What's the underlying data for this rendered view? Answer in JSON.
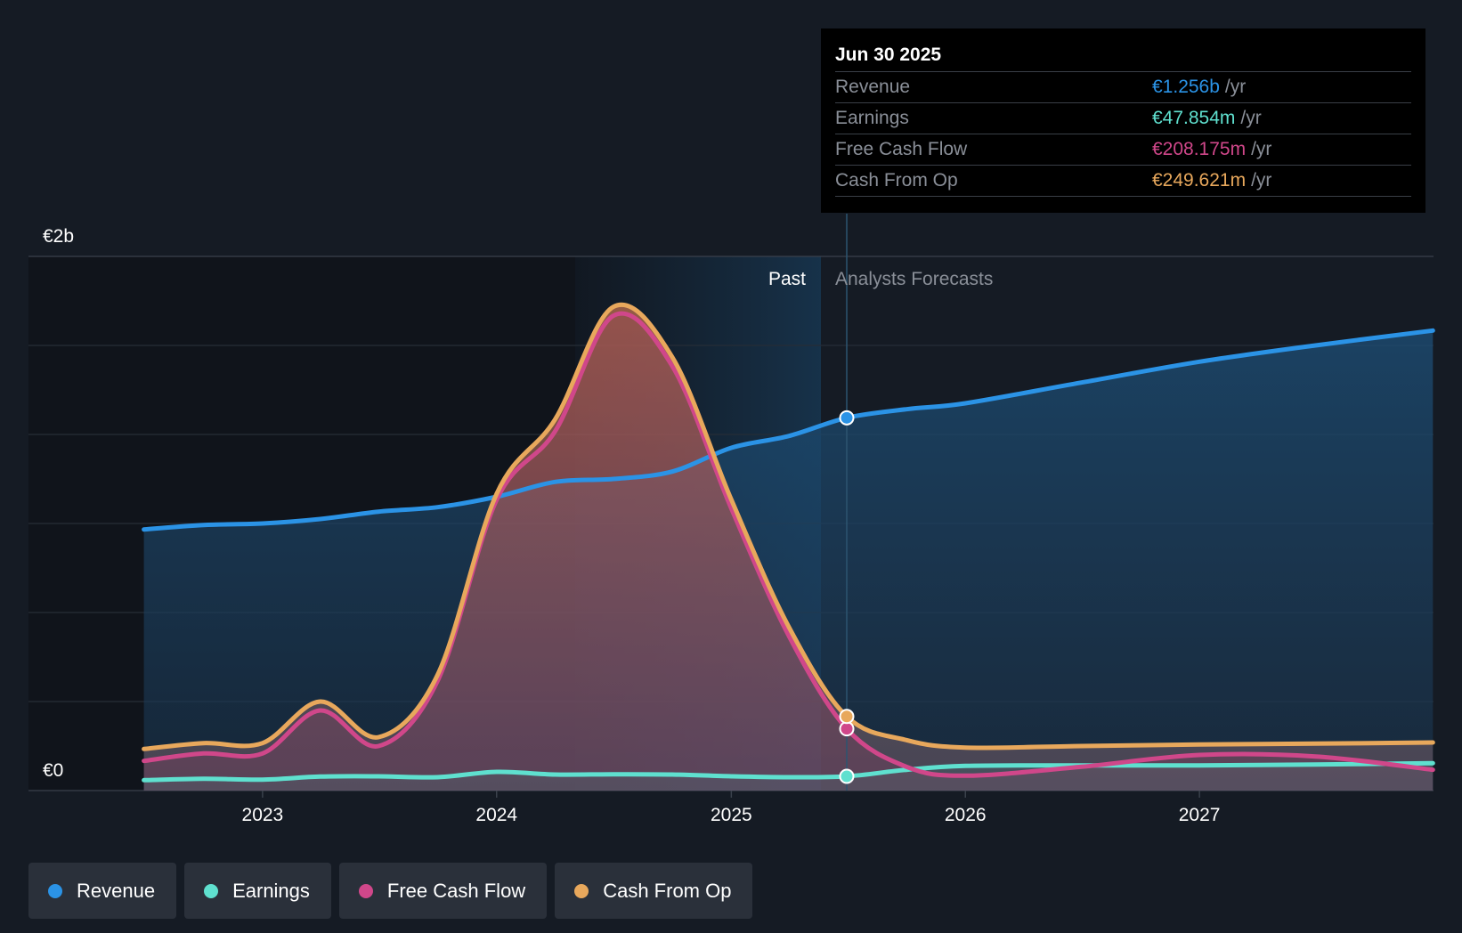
{
  "chart_data": {
    "type": "area",
    "y_axis": {
      "top_label": "€2b",
      "bottom_label": "€0",
      "ylim": [
        0,
        1.8
      ]
    },
    "x_ticks": [
      "2023",
      "2024",
      "2025",
      "2026",
      "2027"
    ],
    "regions": {
      "past_label": "Past",
      "forecast_label": "Analysts Forecasts",
      "divider_date": "2025-06-30"
    },
    "series": [
      {
        "name": "Revenue",
        "color": "#2b93e6",
        "points": [
          [
            "2022-06-30",
            0.88
          ],
          [
            "2022-10-01",
            0.895
          ],
          [
            "2023-01-01",
            0.9
          ],
          [
            "2023-04-01",
            0.915
          ],
          [
            "2023-07-01",
            0.94
          ],
          [
            "2023-10-01",
            0.955
          ],
          [
            "2024-01-01",
            0.99
          ],
          [
            "2024-04-01",
            1.04
          ],
          [
            "2024-07-01",
            1.05
          ],
          [
            "2024-10-01",
            1.075
          ],
          [
            "2025-01-01",
            1.155
          ],
          [
            "2025-04-01",
            1.195
          ],
          [
            "2025-06-30",
            1.256
          ],
          [
            "2025-10-01",
            1.285
          ],
          [
            "2026-01-01",
            1.305
          ],
          [
            "2026-07-01",
            1.375
          ],
          [
            "2027-01-01",
            1.445
          ],
          [
            "2027-07-01",
            1.5
          ],
          [
            "2027-12-31",
            1.55
          ]
        ]
      },
      {
        "name": "Earnings",
        "color": "#5fe0cf",
        "points": [
          [
            "2022-06-30",
            0.035
          ],
          [
            "2022-10-01",
            0.04
          ],
          [
            "2023-01-01",
            0.037
          ],
          [
            "2023-04-01",
            0.047
          ],
          [
            "2023-07-01",
            0.048
          ],
          [
            "2023-10-01",
            0.045
          ],
          [
            "2024-01-01",
            0.063
          ],
          [
            "2024-04-01",
            0.054
          ],
          [
            "2024-07-01",
            0.055
          ],
          [
            "2024-10-01",
            0.054
          ],
          [
            "2025-01-01",
            0.048
          ],
          [
            "2025-04-01",
            0.045
          ],
          [
            "2025-06-30",
            0.047854
          ],
          [
            "2025-10-01",
            0.07
          ],
          [
            "2026-01-01",
            0.083
          ],
          [
            "2026-07-01",
            0.085
          ],
          [
            "2027-01-01",
            0.085
          ],
          [
            "2027-07-01",
            0.088
          ],
          [
            "2027-12-31",
            0.092
          ]
        ]
      },
      {
        "name": "Free Cash Flow",
        "color": "#d0478a",
        "points": [
          [
            "2022-06-30",
            0.1
          ],
          [
            "2022-10-01",
            0.125
          ],
          [
            "2023-01-01",
            0.125
          ],
          [
            "2023-04-01",
            0.27
          ],
          [
            "2023-07-01",
            0.15
          ],
          [
            "2023-10-01",
            0.37
          ],
          [
            "2024-01-01",
            0.98
          ],
          [
            "2024-04-01",
            1.21
          ],
          [
            "2024-07-01",
            1.6
          ],
          [
            "2024-10-01",
            1.43
          ],
          [
            "2025-01-01",
            0.95
          ],
          [
            "2025-04-01",
            0.52
          ],
          [
            "2025-06-30",
            0.208175
          ],
          [
            "2025-10-01",
            0.08
          ],
          [
            "2026-01-01",
            0.05
          ],
          [
            "2026-07-01",
            0.08
          ],
          [
            "2027-01-01",
            0.12
          ],
          [
            "2027-07-01",
            0.115
          ],
          [
            "2027-12-31",
            0.07
          ]
        ]
      },
      {
        "name": "Cash From Op",
        "color": "#e8a85c",
        "points": [
          [
            "2022-06-30",
            0.14
          ],
          [
            "2022-10-01",
            0.16
          ],
          [
            "2023-01-01",
            0.16
          ],
          [
            "2023-04-01",
            0.3
          ],
          [
            "2023-07-01",
            0.18
          ],
          [
            "2023-10-01",
            0.39
          ],
          [
            "2024-01-01",
            1.0
          ],
          [
            "2024-04-01",
            1.25
          ],
          [
            "2024-07-01",
            1.63
          ],
          [
            "2024-10-01",
            1.46
          ],
          [
            "2025-01-01",
            0.98
          ],
          [
            "2025-04-01",
            0.55
          ],
          [
            "2025-06-30",
            0.249621
          ],
          [
            "2025-10-01",
            0.17
          ],
          [
            "2026-01-01",
            0.145
          ],
          [
            "2026-07-01",
            0.15
          ],
          [
            "2027-01-01",
            0.155
          ],
          [
            "2027-07-01",
            0.158
          ],
          [
            "2027-12-31",
            0.162
          ]
        ]
      }
    ]
  },
  "tooltip": {
    "date": "Jun 30 2025",
    "rows": [
      {
        "label": "Revenue",
        "value": "€1.256b",
        "unit": "/yr",
        "color": "#2b93e6"
      },
      {
        "label": "Earnings",
        "value": "€47.854m",
        "unit": "/yr",
        "color": "#5fe0cf"
      },
      {
        "label": "Free Cash Flow",
        "value": "€208.175m",
        "unit": "/yr",
        "color": "#d0478a"
      },
      {
        "label": "Cash From Op",
        "value": "€249.621m",
        "unit": "/yr",
        "color": "#e8a85c"
      }
    ]
  },
  "legend": [
    {
      "label": "Revenue",
      "color": "#2b93e6"
    },
    {
      "label": "Earnings",
      "color": "#5fe0cf"
    },
    {
      "label": "Free Cash Flow",
      "color": "#d0478a"
    },
    {
      "label": "Cash From Op",
      "color": "#e8a85c"
    }
  ]
}
